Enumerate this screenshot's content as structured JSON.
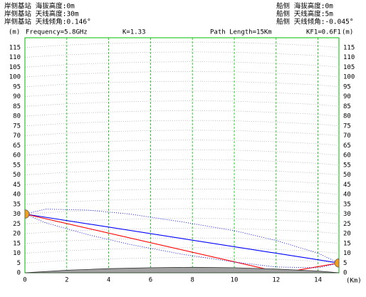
{
  "chart_data": {
    "type": "line",
    "header_left": [
      "岸侧基站 海拔高度:0m",
      "岸侧基站 天线高度:30m",
      "岸侧基站 天线倾角:0.146°"
    ],
    "header_right": [
      "船侧 海拔高度:0m",
      "船侧 天线高度:5m",
      "船侧 天线倾角:-0.045°"
    ],
    "info": [
      "Frequency=5.8GHz",
      "K=1.33",
      "Path Length=15Km",
      "KF1=0.6F1"
    ],
    "ylabel": "(m)",
    "xlabel": "(Km)",
    "xlim": [
      0,
      15
    ],
    "ylim": [
      0,
      120
    ],
    "xticks": [
      0,
      2,
      4,
      6,
      8,
      10,
      12,
      14
    ],
    "yticks": [
      0,
      5,
      10,
      15,
      20,
      25,
      30,
      35,
      40,
      45,
      50,
      55,
      60,
      65,
      70,
      75,
      80,
      85,
      90,
      95,
      100,
      105,
      110,
      115
    ],
    "grid": true,
    "series": [
      {
        "color": "#0000ff",
        "style": "solid",
        "x": [
          0,
          15
        ],
        "values": [
          30,
          5
        ]
      },
      {
        "color": "#ff0000",
        "style": "solid",
        "x": [
          0,
          12.3,
          15
        ],
        "values": [
          30,
          0,
          5
        ]
      },
      {
        "color": "#0000ff",
        "style": "dotted",
        "x": [
          0,
          1,
          3,
          5,
          7.5,
          10,
          12,
          14,
          15
        ],
        "values": [
          30,
          32.5,
          32,
          30,
          26,
          21.5,
          16.5,
          10,
          5
        ]
      },
      {
        "color": "#0000ff",
        "style": "dotted",
        "x": [
          0,
          1,
          3,
          5,
          7.5,
          10,
          12,
          14,
          15
        ],
        "values": [
          30,
          25.5,
          19.5,
          14.5,
          9.5,
          5.5,
          3,
          2.5,
          5
        ]
      },
      {
        "color": "#a0a0a0",
        "style": "fill",
        "x": [
          0,
          2,
          4,
          6,
          8,
          10,
          12,
          14,
          15
        ],
        "values": [
          0,
          1.3,
          2.1,
          2.6,
          2.8,
          2.6,
          1.9,
          0.9,
          0
        ]
      }
    ],
    "stations": [
      {
        "x": 0,
        "value": 30,
        "color": "#f0a020"
      },
      {
        "x": 15,
        "value": 5,
        "color": "#f0a020"
      }
    ]
  }
}
